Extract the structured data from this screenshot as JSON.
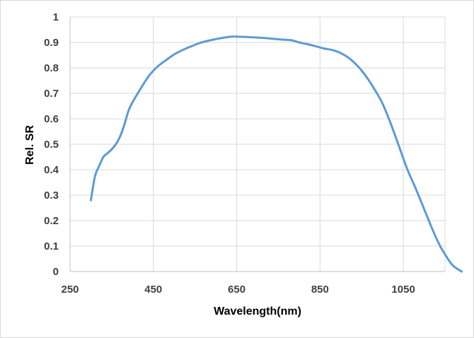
{
  "chart_data": {
    "type": "line",
    "title": "",
    "xlabel": "Wavelength(nm)",
    "ylabel": "Rel. SR",
    "xlim": [
      250,
      1150
    ],
    "ylim": [
      0,
      1
    ],
    "x_ticks": [
      250,
      450,
      650,
      850,
      1050
    ],
    "x_tick_labels": [
      "250",
      "450",
      "650",
      "850",
      "1050"
    ],
    "y_ticks": [
      0,
      0.1,
      0.2,
      0.3,
      0.4,
      0.5,
      0.6,
      0.7,
      0.8,
      0.9,
      1
    ],
    "y_tick_labels": [
      "0",
      "0.1",
      "0.2",
      "0.3",
      "0.4",
      "0.5",
      "0.6",
      "0.7",
      "0.8",
      "0.9",
      "1"
    ],
    "grid": true,
    "legend": "none",
    "series": [
      {
        "name": "Rel. SR",
        "color": "#5b9bd5",
        "x": [
          300,
          310,
          320,
          330,
          340,
          350,
          360,
          370,
          380,
          390,
          400,
          420,
          440,
          460,
          480,
          500,
          520,
          540,
          560,
          580,
          600,
          620,
          640,
          660,
          680,
          700,
          720,
          740,
          760,
          780,
          800,
          820,
          840,
          860,
          880,
          900,
          920,
          940,
          960,
          980,
          1000,
          1020,
          1040,
          1060,
          1080,
          1100,
          1110,
          1120,
          1130,
          1140,
          1150,
          1160,
          1170,
          1180,
          1190
        ],
        "y": [
          0.28,
          0.375,
          0.415,
          0.45,
          0.465,
          0.48,
          0.5,
          0.53,
          0.575,
          0.63,
          0.665,
          0.72,
          0.77,
          0.805,
          0.83,
          0.853,
          0.87,
          0.884,
          0.897,
          0.906,
          0.913,
          0.919,
          0.923,
          0.922,
          0.921,
          0.919,
          0.917,
          0.914,
          0.911,
          0.909,
          0.9,
          0.893,
          0.885,
          0.876,
          0.87,
          0.858,
          0.838,
          0.808,
          0.768,
          0.718,
          0.66,
          0.58,
          0.49,
          0.4,
          0.325,
          0.245,
          0.205,
          0.165,
          0.128,
          0.095,
          0.068,
          0.042,
          0.022,
          0.01,
          0.0
        ]
      }
    ]
  }
}
